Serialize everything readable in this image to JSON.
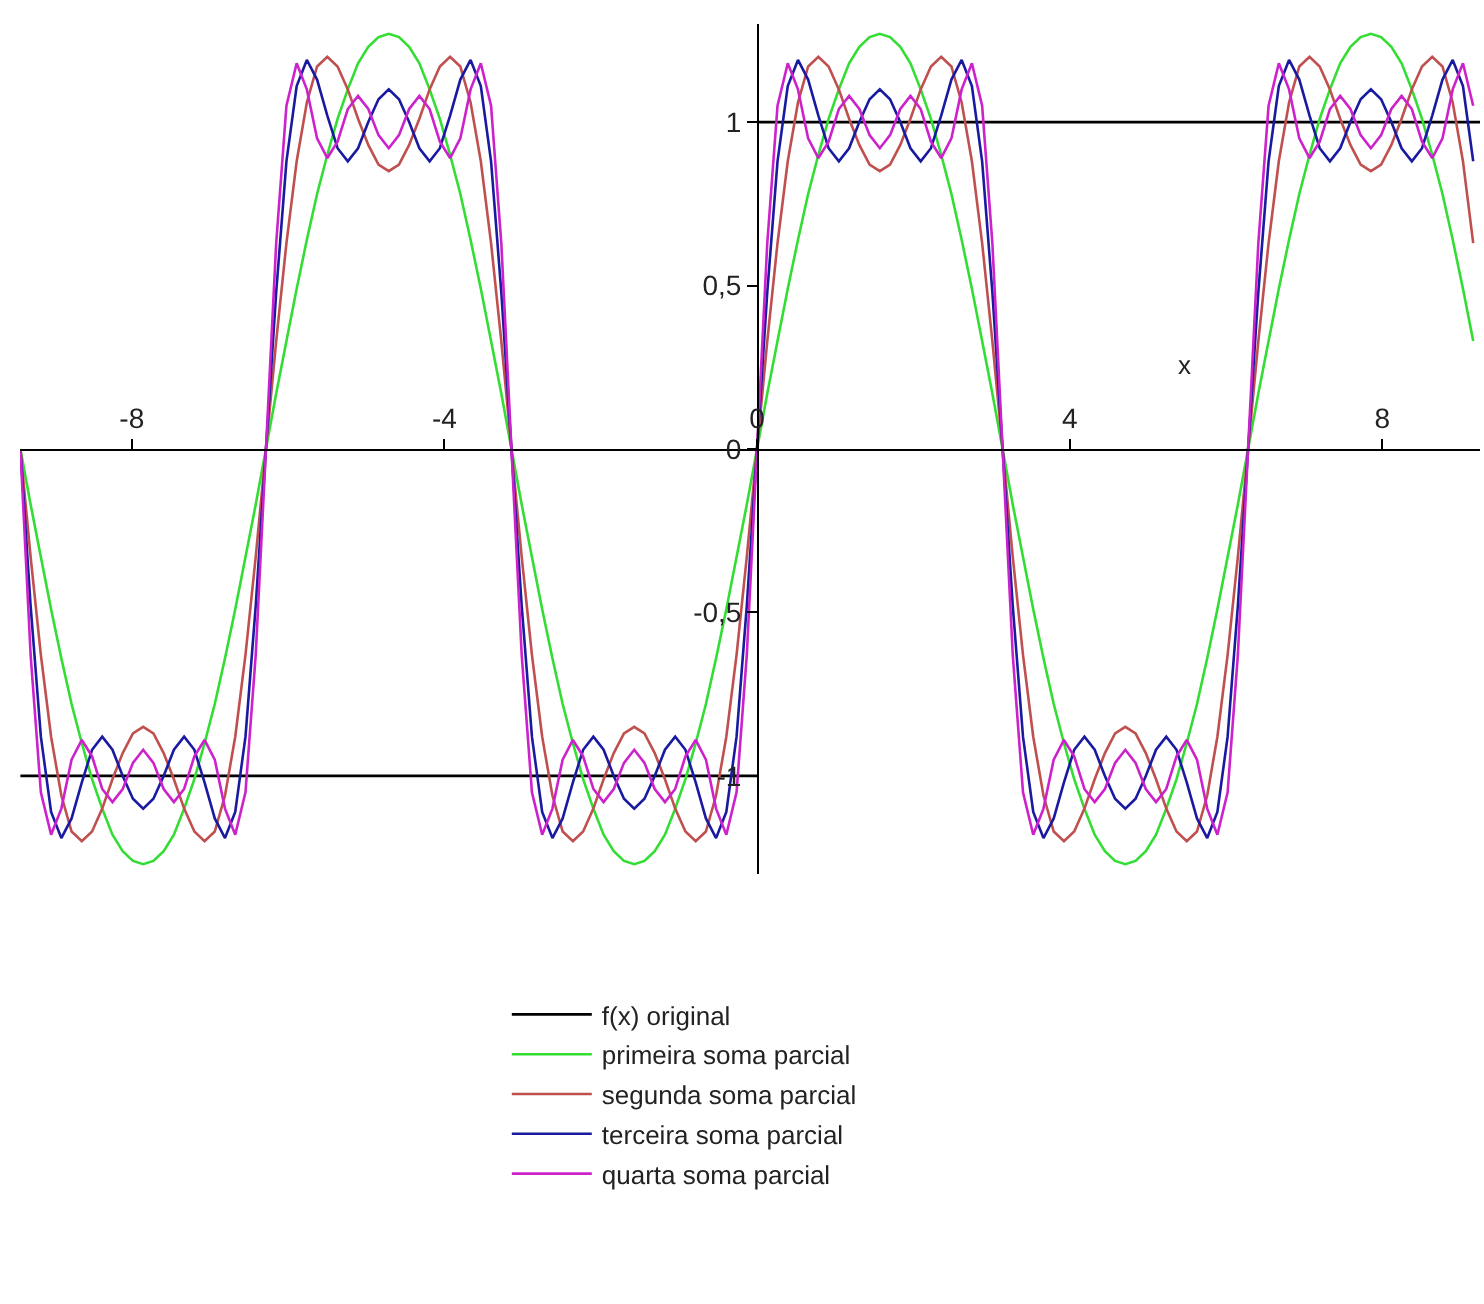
{
  "chart_data": {
    "type": "line",
    "xlabel": "x",
    "xlim": [
      -9.43,
      9.25
    ],
    "ylim": [
      -1.3,
      1.3
    ],
    "xticks": [
      -8,
      -4,
      0,
      4,
      8
    ],
    "yticks": [
      {
        "value": -1,
        "label": "-1"
      },
      {
        "value": -0.5,
        "label": "-0,5"
      },
      0,
      {
        "value": 0.5,
        "label": "0,5"
      },
      1
    ],
    "legend": "bottom",
    "marker": "none",
    "line_style": "solid",
    "x": [
      -9.425,
      -9.294,
      -9.163,
      -9.032,
      -8.901,
      -8.77,
      -8.639,
      -8.508,
      -8.378,
      -8.247,
      -8.116,
      -7.985,
      -7.854,
      -7.723,
      -7.592,
      -7.461,
      -7.33,
      -7.199,
      -7.069,
      -6.938,
      -6.807,
      -6.676,
      -6.545,
      -6.414,
      -6.283,
      -6.152,
      -6.021,
      -5.89,
      -5.76,
      -5.629,
      -5.498,
      -5.367,
      -5.236,
      -5.105,
      -4.974,
      -4.843,
      -4.712,
      -4.581,
      -4.451,
      -4.32,
      -4.189,
      -4.058,
      -3.927,
      -3.796,
      -3.665,
      -3.534,
      -3.403,
      -3.272,
      -3.142,
      -3.011,
      -2.88,
      -2.749,
      -2.618,
      -2.487,
      -2.356,
      -2.225,
      -2.094,
      -1.963,
      -1.833,
      -1.702,
      -1.571,
      -1.44,
      -1.309,
      -1.178,
      -1.047,
      -0.916,
      -0.785,
      -0.654,
      -0.524,
      -0.393,
      -0.262,
      -0.131,
      0,
      0.131,
      0.262,
      0.393,
      0.524,
      0.654,
      0.785,
      0.916,
      1.047,
      1.178,
      1.309,
      1.44,
      1.571,
      1.702,
      1.833,
      1.963,
      2.094,
      2.225,
      2.356,
      2.487,
      2.618,
      2.749,
      2.88,
      3.011,
      3.142,
      3.272,
      3.403,
      3.534,
      3.665,
      3.796,
      3.927,
      4.058,
      4.189,
      4.32,
      4.451,
      4.581,
      4.712,
      4.843,
      4.974,
      5.105,
      5.236,
      5.367,
      5.498,
      5.629,
      5.76,
      5.89,
      6.021,
      6.152,
      6.283,
      6.414,
      6.545,
      6.676,
      6.807,
      6.938,
      7.069,
      7.199,
      7.33,
      7.461,
      7.592,
      7.723,
      7.854,
      7.985,
      8.116,
      8.247,
      8.378,
      8.508,
      8.639,
      8.77,
      8.901,
      9.032,
      9.163
    ],
    "series": [
      {
        "name": "f(x) original",
        "color": "#000000",
        "x": [
          -9.425,
          0,
          0,
          9.25
        ],
        "values": [
          -1,
          -1,
          1,
          1
        ]
      },
      {
        "name": "primeira soma parcial",
        "color": "#33dd33",
        "values": [
          0,
          -0.17,
          -0.33,
          -0.49,
          -0.64,
          -0.78,
          -0.9,
          -1.01,
          -1.1,
          -1.18,
          -1.23,
          -1.26,
          -1.27,
          -1.26,
          -1.23,
          -1.18,
          -1.1,
          -1.01,
          -0.9,
          -0.78,
          -0.64,
          -0.49,
          -0.33,
          -0.17,
          0,
          0.17,
          0.33,
          0.49,
          0.64,
          0.78,
          0.9,
          1.01,
          1.1,
          1.18,
          1.23,
          1.26,
          1.27,
          1.26,
          1.23,
          1.18,
          1.1,
          1.01,
          0.9,
          0.78,
          0.64,
          0.49,
          0.33,
          0.17,
          0,
          -0.17,
          -0.33,
          -0.49,
          -0.64,
          -0.78,
          -0.9,
          -1.01,
          -1.1,
          -1.18,
          -1.23,
          -1.26,
          -1.27,
          -1.26,
          -1.23,
          -1.18,
          -1.1,
          -1.01,
          -0.9,
          -0.78,
          -0.64,
          -0.49,
          -0.33,
          -0.17,
          0,
          0.17,
          0.33,
          0.49,
          0.64,
          0.78,
          0.9,
          1.01,
          1.1,
          1.18,
          1.23,
          1.26,
          1.27,
          1.26,
          1.23,
          1.18,
          1.1,
          1.01,
          0.9,
          0.78,
          0.64,
          0.49,
          0.33,
          0.17,
          0,
          -0.17,
          -0.33,
          -0.49,
          -0.64,
          -0.78,
          -0.9,
          -1.01,
          -1.1,
          -1.18,
          -1.23,
          -1.26,
          -1.27,
          -1.26,
          -1.23,
          -1.18,
          -1.1,
          -1.01,
          -0.9,
          -0.78,
          -0.64,
          -0.49,
          -0.33,
          -0.17,
          0,
          0.17,
          0.33,
          0.49,
          0.64,
          0.78,
          0.9,
          1.01,
          1.1,
          1.18,
          1.23,
          1.26,
          1.27,
          1.26,
          1.23,
          1.18,
          1.1,
          1.01,
          0.9,
          0.78,
          0.64,
          0.49,
          0.33
        ]
      },
      {
        "name": "segunda soma parcial",
        "color": "#c05050",
        "values": [
          0,
          -0.33,
          -0.63,
          -0.88,
          -1.06,
          -1.17,
          -1.2,
          -1.17,
          -1.1,
          -1.01,
          -0.93,
          -0.87,
          -0.85,
          -0.87,
          -0.93,
          -1.01,
          -1.1,
          -1.17,
          -1.2,
          -1.17,
          -1.06,
          -0.88,
          -0.63,
          -0.33,
          0,
          0.33,
          0.63,
          0.88,
          1.06,
          1.17,
          1.2,
          1.17,
          1.1,
          1.01,
          0.93,
          0.87,
          0.85,
          0.87,
          0.93,
          1.01,
          1.1,
          1.17,
          1.2,
          1.17,
          1.06,
          0.88,
          0.63,
          0.33,
          0,
          -0.33,
          -0.63,
          -0.88,
          -1.06,
          -1.17,
          -1.2,
          -1.17,
          -1.1,
          -1.01,
          -0.93,
          -0.87,
          -0.85,
          -0.87,
          -0.93,
          -1.01,
          -1.1,
          -1.17,
          -1.2,
          -1.17,
          -1.06,
          -0.88,
          -0.63,
          -0.33,
          0,
          0.33,
          0.63,
          0.88,
          1.06,
          1.17,
          1.2,
          1.17,
          1.1,
          1.01,
          0.93,
          0.87,
          0.85,
          0.87,
          0.93,
          1.01,
          1.1,
          1.17,
          1.2,
          1.17,
          1.06,
          0.88,
          0.63,
          0.33,
          0,
          -0.33,
          -0.63,
          -0.88,
          -1.06,
          -1.17,
          -1.2,
          -1.17,
          -1.1,
          -1.01,
          -0.93,
          -0.87,
          -0.85,
          -0.87,
          -0.93,
          -1.01,
          -1.1,
          -1.17,
          -1.2,
          -1.17,
          -1.06,
          -0.88,
          -0.63,
          -0.33,
          0,
          0.33,
          0.63,
          0.88,
          1.06,
          1.17,
          1.2,
          1.17,
          1.1,
          1.01,
          0.93,
          0.87,
          0.85,
          0.87,
          0.93,
          1.01,
          1.1,
          1.17,
          1.2,
          1.17,
          1.06,
          0.88,
          0.63
        ]
      },
      {
        "name": "terceira soma parcial",
        "color": "#1a1aa0",
        "values": [
          0,
          -0.48,
          -0.88,
          -1.11,
          -1.19,
          -1.13,
          -1.02,
          -0.92,
          -0.88,
          -0.92,
          -1.0,
          -1.07,
          -1.1,
          -1.07,
          -1.0,
          -0.92,
          -0.88,
          -0.92,
          -1.02,
          -1.13,
          -1.19,
          -1.11,
          -0.88,
          -0.48,
          0,
          0.48,
          0.88,
          1.11,
          1.19,
          1.13,
          1.02,
          0.92,
          0.88,
          0.92,
          1.0,
          1.07,
          1.1,
          1.07,
          1.0,
          0.92,
          0.88,
          0.92,
          1.02,
          1.13,
          1.19,
          1.11,
          0.88,
          0.48,
          0,
          -0.48,
          -0.88,
          -1.11,
          -1.19,
          -1.13,
          -1.02,
          -0.92,
          -0.88,
          -0.92,
          -1.0,
          -1.07,
          -1.1,
          -1.07,
          -1.0,
          -0.92,
          -0.88,
          -0.92,
          -1.02,
          -1.13,
          -1.19,
          -1.11,
          -0.88,
          -0.48,
          0,
          0.48,
          0.88,
          1.11,
          1.19,
          1.13,
          1.02,
          0.92,
          0.88,
          0.92,
          1.0,
          1.07,
          1.1,
          1.07,
          1.0,
          0.92,
          0.88,
          0.92,
          1.02,
          1.13,
          1.19,
          1.11,
          0.88,
          0.48,
          0,
          -0.48,
          -0.88,
          -1.11,
          -1.19,
          -1.13,
          -1.02,
          -0.92,
          -0.88,
          -0.92,
          -1.0,
          -1.07,
          -1.1,
          -1.07,
          -1.0,
          -0.92,
          -0.88,
          -0.92,
          -1.02,
          -1.13,
          -1.19,
          -1.11,
          -0.88,
          -0.48,
          0,
          0.48,
          0.88,
          1.11,
          1.19,
          1.13,
          1.02,
          0.92,
          0.88,
          0.92,
          1.0,
          1.07,
          1.1,
          1.07,
          1.0,
          0.92,
          0.88,
          0.92,
          1.02,
          1.13,
          1.19,
          1.11,
          0.88
        ]
      },
      {
        "name": "quarta soma parcial",
        "color": "#cc22cc",
        "values": [
          0,
          -0.63,
          -1.05,
          -1.18,
          -1.1,
          -0.95,
          -0.89,
          -0.94,
          -1.04,
          -1.08,
          -1.04,
          -0.96,
          -0.92,
          -0.96,
          -1.04,
          -1.08,
          -1.04,
          -0.94,
          -0.89,
          -0.95,
          -1.1,
          -1.18,
          -1.05,
          -0.63,
          0,
          0.63,
          1.05,
          1.18,
          1.1,
          0.95,
          0.89,
          0.94,
          1.04,
          1.08,
          1.04,
          0.96,
          0.92,
          0.96,
          1.04,
          1.08,
          1.04,
          0.94,
          0.89,
          0.95,
          1.1,
          1.18,
          1.05,
          0.63,
          0,
          -0.63,
          -1.05,
          -1.18,
          -1.1,
          -0.95,
          -0.89,
          -0.94,
          -1.04,
          -1.08,
          -1.04,
          -0.96,
          -0.92,
          -0.96,
          -1.04,
          -1.08,
          -1.04,
          -0.94,
          -0.89,
          -0.95,
          -1.1,
          -1.18,
          -1.05,
          -0.63,
          0,
          0.63,
          1.05,
          1.18,
          1.1,
          0.95,
          0.89,
          0.94,
          1.04,
          1.08,
          1.04,
          0.96,
          0.92,
          0.96,
          1.04,
          1.08,
          1.04,
          0.94,
          0.89,
          0.95,
          1.1,
          1.18,
          1.05,
          0.63,
          0,
          -0.63,
          -1.05,
          -1.18,
          -1.1,
          -0.95,
          -0.89,
          -0.94,
          -1.04,
          -1.08,
          -1.04,
          -0.96,
          -0.92,
          -0.96,
          -1.04,
          -1.08,
          -1.04,
          -0.94,
          -0.89,
          -0.95,
          -1.1,
          -1.18,
          -1.05,
          -0.63,
          0,
          0.63,
          1.05,
          1.18,
          1.1,
          0.95,
          0.89,
          0.94,
          1.04,
          1.08,
          1.04,
          0.96,
          0.92,
          0.96,
          1.04,
          1.08,
          1.04,
          0.94,
          0.89,
          0.95,
          1.1,
          1.18,
          1.05
        ]
      }
    ]
  }
}
